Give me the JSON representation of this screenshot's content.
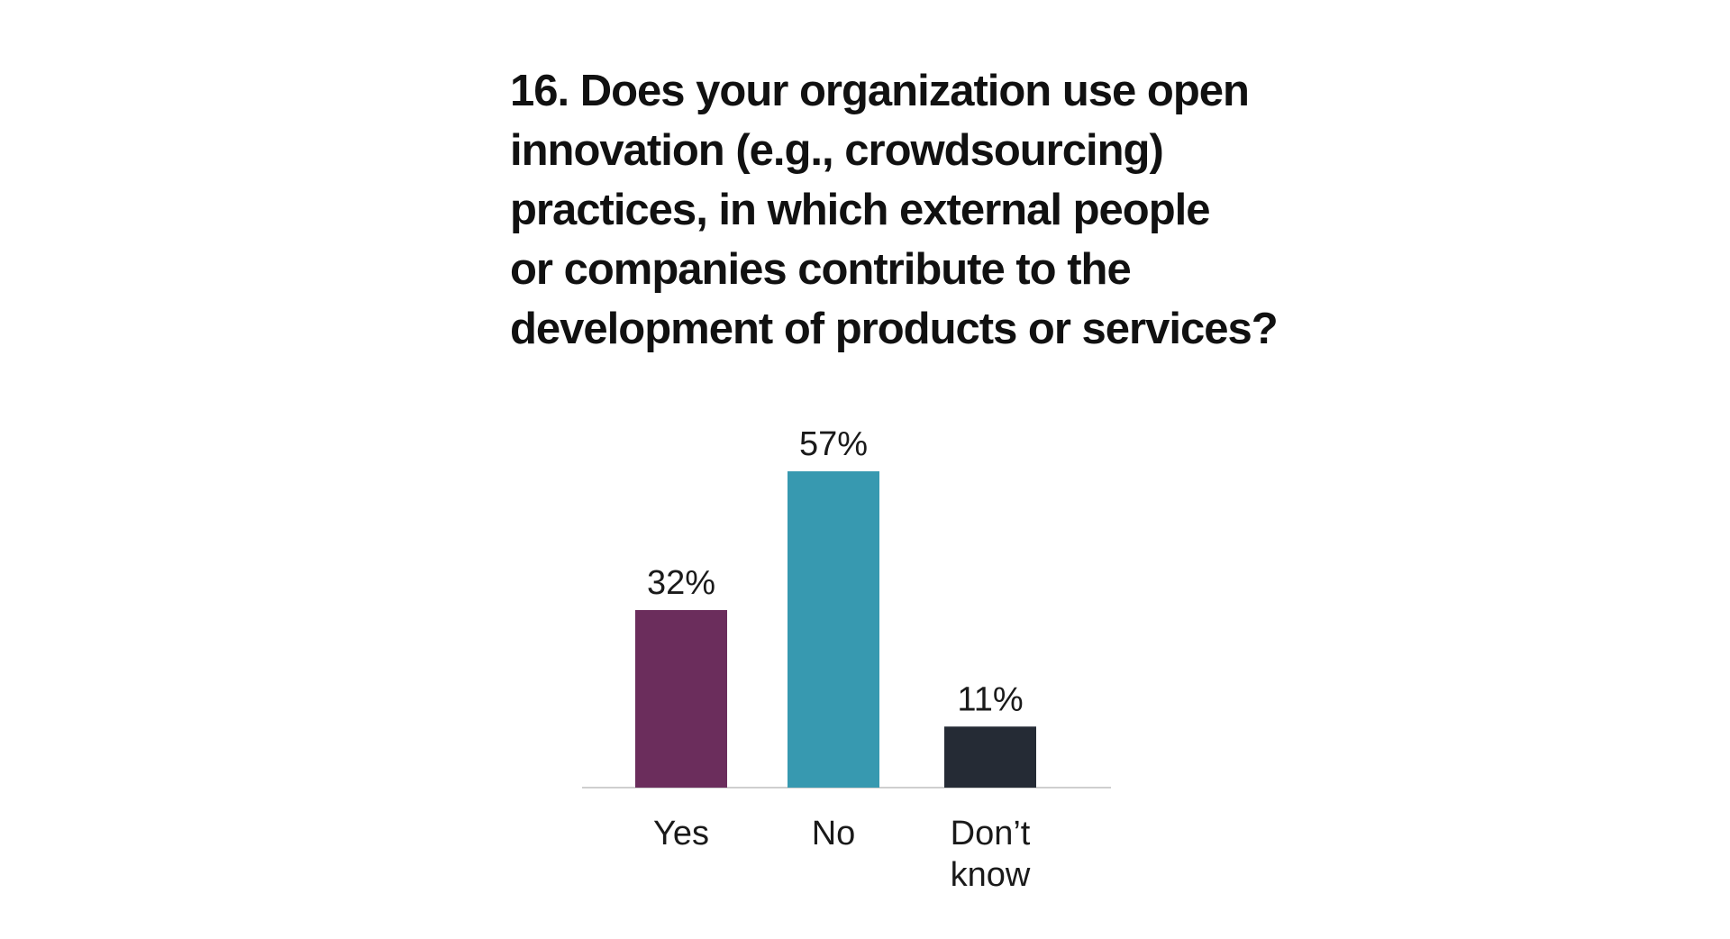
{
  "title_lines": [
    "16. Does your organization use open",
    "innovation (e.g., crowdsourcing)",
    "practices, in which external people",
    "or companies contribute to the",
    "development of products or services?"
  ],
  "chart_data": {
    "type": "bar",
    "title": "16. Does your organization use open innovation (e.g., crowdsourcing) practices, in which external people or companies contribute to the development of products or services?",
    "categories": [
      "Yes",
      "No",
      "Don’t know"
    ],
    "category_lines": [
      [
        "Yes"
      ],
      [
        "No"
      ],
      [
        "Don’t",
        "know"
      ]
    ],
    "values": [
      32,
      57,
      11
    ],
    "value_labels": [
      "32%",
      "57%",
      "11%"
    ],
    "unit": "%",
    "colors": [
      "#6b2d5c",
      "#3799b0",
      "#252b35"
    ],
    "ylim": [
      0,
      57
    ],
    "grid": false,
    "legend": "none",
    "xlabel": "",
    "ylabel": ""
  }
}
